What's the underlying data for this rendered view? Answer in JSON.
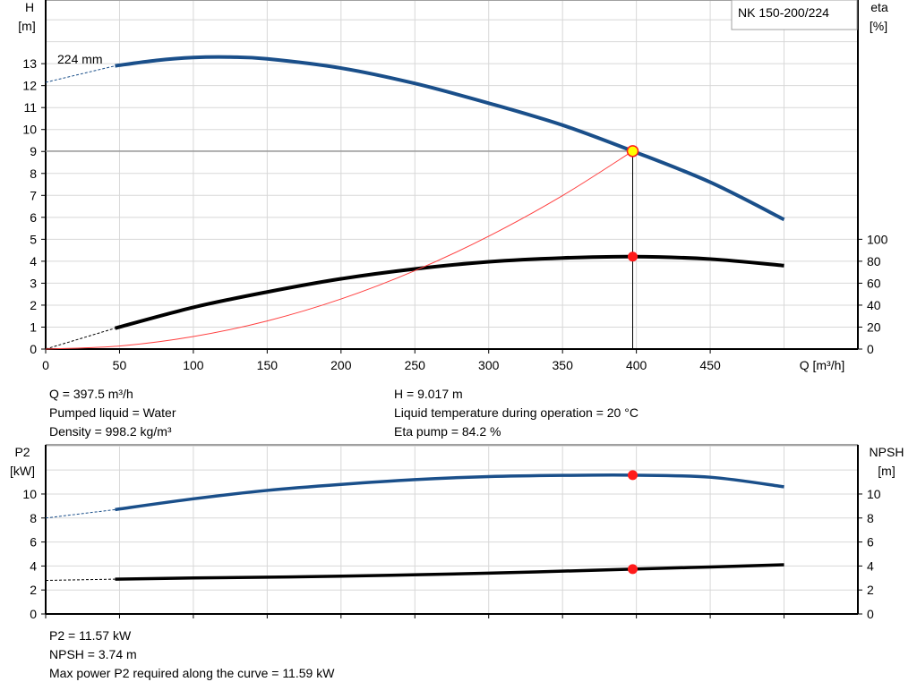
{
  "title": "NK 150-200/224",
  "curve_label": "224 mm",
  "colors": {
    "head": "#1a4f8a",
    "eta": "#000000",
    "system": "#ff4040",
    "point": "#ff1a1a",
    "marker_fill": "#ffff00"
  },
  "chart_data": [
    {
      "type": "line",
      "xlabel": "Q [m³/h]",
      "ylabel": "H [m]",
      "y2label": "eta [%]",
      "y_label_top": "H",
      "y_label_unit": "[m]",
      "y2_label_top": "eta",
      "y2_label_unit": "[%]",
      "xlim": [
        0,
        550
      ],
      "ylim": [
        0,
        15.9
      ],
      "y2lim": [
        0,
        318
      ],
      "x_ticks": [
        "0",
        "50",
        "100",
        "150",
        "200",
        "250",
        "300",
        "350",
        "400",
        "450"
      ],
      "y_ticks": [
        "0",
        "1",
        "2",
        "3",
        "4",
        "5",
        "6",
        "7",
        "8",
        "9",
        "10",
        "11",
        "12",
        "13"
      ],
      "y2_ticks": [
        "0",
        "20",
        "40",
        "60",
        "80",
        "100"
      ],
      "grid": true,
      "series": [
        {
          "key": "head",
          "axis": "y",
          "dashed": {
            "x": [
              0,
              47
            ],
            "y": [
              12.15,
              12.9
            ]
          },
          "x": [
            47,
            75,
            100,
            125,
            150,
            200,
            250,
            300,
            350,
            397.5,
            450,
            500
          ],
          "y": [
            12.9,
            13.15,
            13.28,
            13.3,
            13.22,
            12.8,
            12.1,
            11.2,
            10.2,
            9.017,
            7.6,
            5.9
          ]
        },
        {
          "key": "eta",
          "axis": "y2",
          "dashed": {
            "x": [
              0,
              47
            ],
            "y": [
              0,
              19
            ]
          },
          "x": [
            47,
            100,
            150,
            200,
            250,
            300,
            350,
            397.5,
            450,
            500
          ],
          "y": [
            19,
            38,
            52,
            64,
            73,
            79.5,
            83,
            84.2,
            82,
            76
          ]
        },
        {
          "key": "system",
          "axis": "y",
          "x": [
            0,
            50,
            100,
            150,
            200,
            250,
            300,
            350,
            397.5
          ],
          "y": [
            0,
            0.14,
            0.57,
            1.28,
            2.28,
            3.57,
            5.14,
            6.99,
            9.017
          ]
        }
      ],
      "operating_point": {
        "Q": 397.5,
        "H": 9.017,
        "eta": 84.2
      }
    },
    {
      "type": "line",
      "xlim": [
        0,
        550
      ],
      "ylim": [
        0,
        14.1
      ],
      "y_label_top": "P2",
      "y_label_unit": "[kW]",
      "y2_label_top": "NPSH",
      "y2_label_unit": "[m]",
      "y_ticks": [
        "0",
        "2",
        "4",
        "6",
        "8",
        "10"
      ],
      "y2_ticks": [
        "0",
        "2",
        "4",
        "6",
        "8",
        "10"
      ],
      "grid": true,
      "series": [
        {
          "key": "p2",
          "dashed": {
            "x": [
              0,
              47
            ],
            "y": [
              8.0,
              8.7
            ]
          },
          "x": [
            47,
            100,
            150,
            200,
            250,
            300,
            350,
            397.5,
            450,
            500
          ],
          "y": [
            8.7,
            9.6,
            10.3,
            10.8,
            11.2,
            11.45,
            11.55,
            11.57,
            11.4,
            10.6
          ]
        },
        {
          "key": "npsh",
          "dashed": {
            "x": [
              0,
              47
            ],
            "y": [
              2.8,
              2.9
            ]
          },
          "x": [
            47,
            100,
            200,
            300,
            397.5,
            450,
            500
          ],
          "y": [
            2.9,
            3.0,
            3.15,
            3.4,
            3.74,
            3.92,
            4.1
          ]
        }
      ],
      "operating_point": {
        "Q": 397.5,
        "P2": 11.57,
        "NPSH": 3.74
      }
    }
  ],
  "info_top_left": [
    "Q = 397.5 m³/h",
    "Pumped liquid = Water",
    "Density = 998.2 kg/m³"
  ],
  "info_top_right": [
    "H = 9.017 m",
    "Liquid temperature during operation = 20 °C",
    "Eta pump = 84.2 %"
  ],
  "info_bottom": [
    "P2 = 11.57 kW",
    "NPSH = 3.74 m",
    "Max power P2 required along the curve = 11.59 kW"
  ]
}
